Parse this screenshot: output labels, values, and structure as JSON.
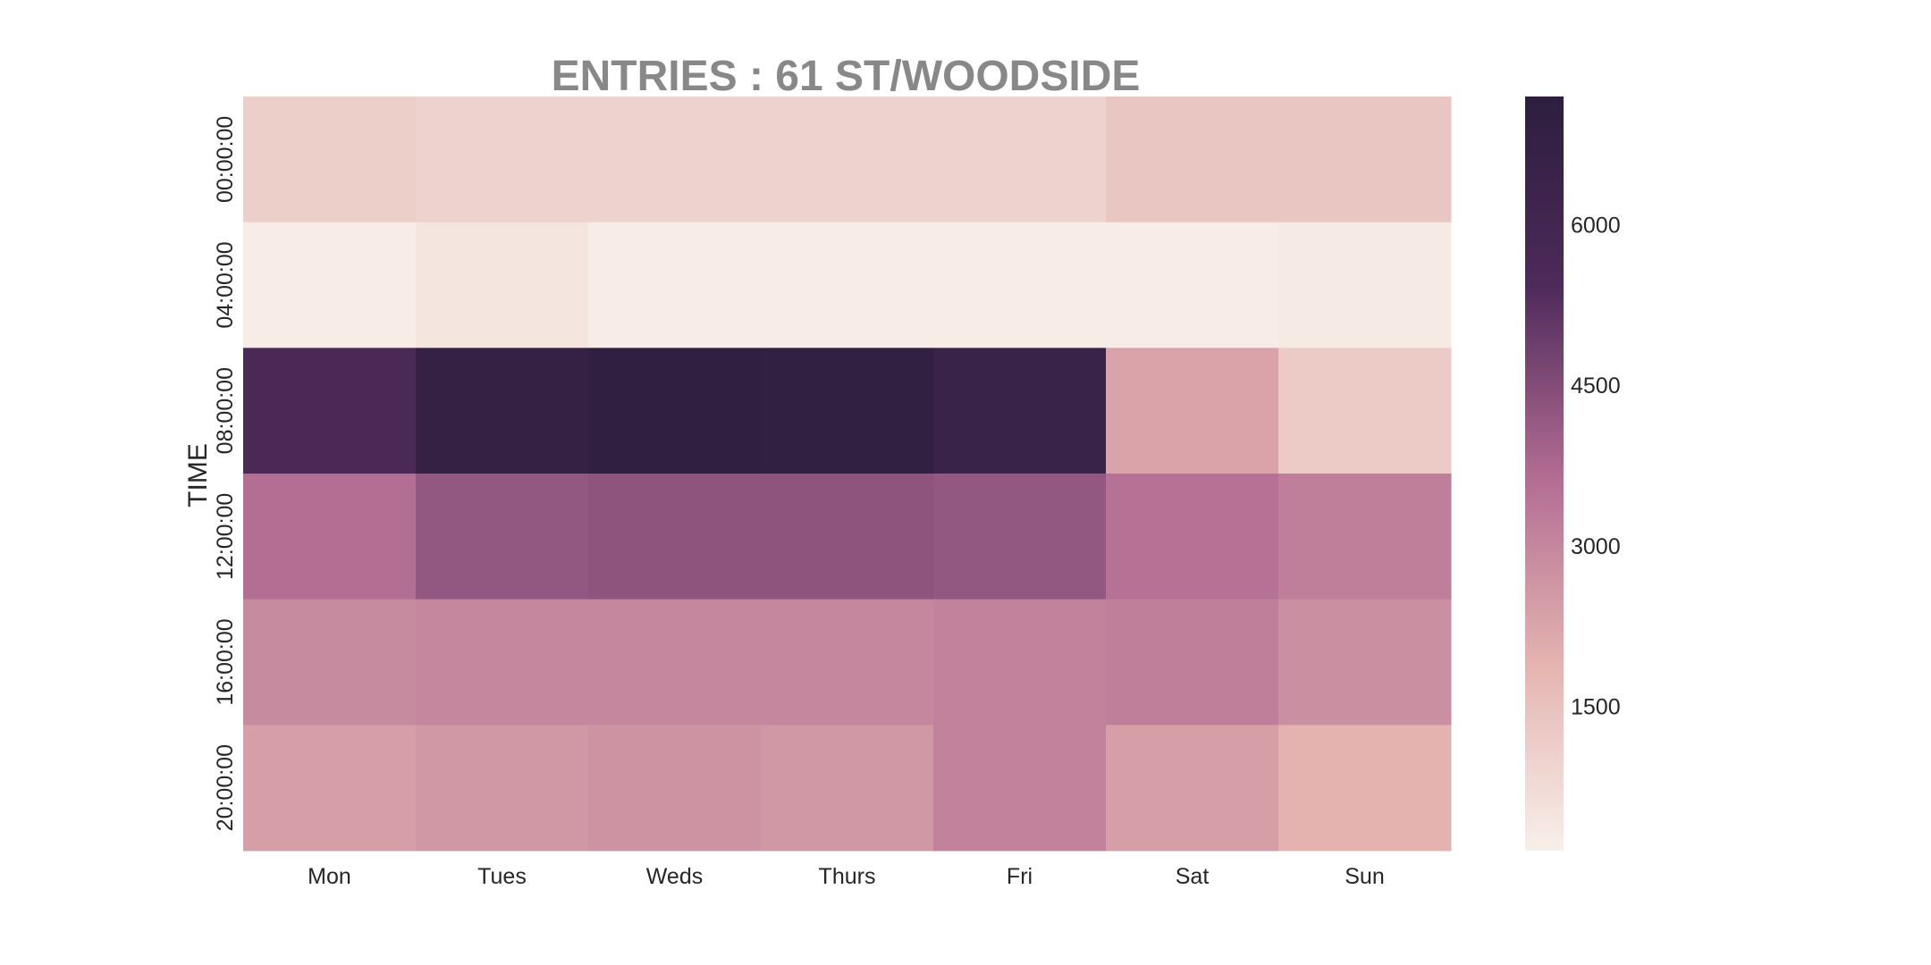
{
  "chart_data": {
    "type": "heatmap",
    "title": "ENTRIES : 61 ST/WOODSIDE",
    "xlabel": "",
    "ylabel": "TIME",
    "x_categories": [
      "Mon",
      "Tues",
      "Weds",
      "Thurs",
      "Fri",
      "Sat",
      "Sun"
    ],
    "y_categories": [
      "00:00:00",
      "04:00:00",
      "08:00:00",
      "12:00:00",
      "16:00:00",
      "20:00:00"
    ],
    "values": [
      [
        1100,
        1000,
        1000,
        1000,
        1000,
        1350,
        1350
      ],
      [
        250,
        450,
        250,
        250,
        250,
        250,
        300
      ],
      [
        5600,
        6800,
        7000,
        6900,
        6500,
        2300,
        1200
      ],
      [
        3600,
        4200,
        4300,
        4300,
        4200,
        3500,
        3200
      ],
      [
        2900,
        3000,
        3000,
        3000,
        3100,
        3200,
        2800
      ],
      [
        2400,
        2600,
        2700,
        2600,
        3100,
        2400,
        1900
      ]
    ],
    "colorbar": {
      "ticks": [
        1500,
        3000,
        4500,
        6000
      ],
      "range": [
        150,
        7200
      ]
    },
    "colormap": [
      "#f8efe9",
      "#e4b3b0",
      "#b16b92",
      "#4d2a5a",
      "#2d1e3e"
    ],
    "grid": false,
    "legend": "colorbar-right"
  }
}
